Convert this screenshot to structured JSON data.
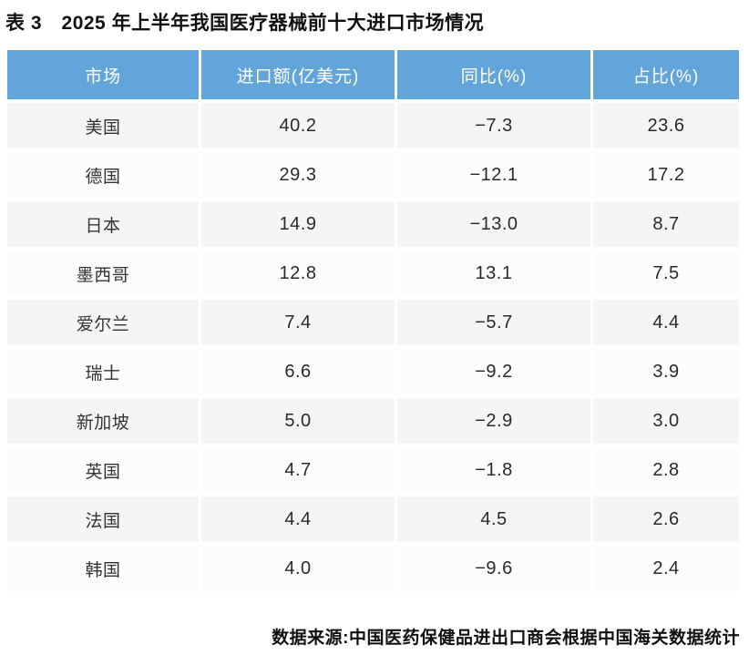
{
  "title": "表 3　2025 年上半年我国医疗器械前十大进口市场情况",
  "table": {
    "headers": [
      "市场",
      "进口额(亿美元)",
      "同比(%)",
      "占比(%)"
    ],
    "rows": [
      {
        "market": "美国",
        "import_value": "40.2",
        "yoy": "−7.3",
        "share": "23.6"
      },
      {
        "market": "德国",
        "import_value": "29.3",
        "yoy": "−12.1",
        "share": "17.2"
      },
      {
        "market": "日本",
        "import_value": "14.9",
        "yoy": "−13.0",
        "share": "8.7"
      },
      {
        "market": "墨西哥",
        "import_value": "12.8",
        "yoy": "13.1",
        "share": "7.5"
      },
      {
        "market": "爱尔兰",
        "import_value": "7.4",
        "yoy": "−5.7",
        "share": "4.4"
      },
      {
        "market": "瑞士",
        "import_value": "6.6",
        "yoy": "−9.2",
        "share": "3.9"
      },
      {
        "market": "新加坡",
        "import_value": "5.0",
        "yoy": "−2.9",
        "share": "3.0"
      },
      {
        "market": "英国",
        "import_value": "4.7",
        "yoy": "−1.8",
        "share": "2.8"
      },
      {
        "market": "法国",
        "import_value": "4.4",
        "yoy": "4.5",
        "share": "2.6"
      },
      {
        "market": "韩国",
        "import_value": "4.0",
        "yoy": "−9.6",
        "share": "2.4"
      }
    ]
  },
  "footer": {
    "source": "数据来源:中国医药保健品进出口商会根据中国海关数据统计"
  },
  "colors": {
    "header_bg": "#62a5da",
    "header_text": "#ffffff",
    "row_odd_bg": "#f4f5f6",
    "row_even_bg": "#fbfcfe",
    "body_text": "#2a2a2a"
  },
  "chart_data": {
    "type": "table",
    "title": "表 3　2025 年上半年我国医疗器械前十大进口市场情况",
    "columns": [
      "市场",
      "进口额(亿美元)",
      "同比(%)",
      "占比(%)"
    ],
    "rows": [
      [
        "美国",
        40.2,
        -7.3,
        23.6
      ],
      [
        "德国",
        29.3,
        -12.1,
        17.2
      ],
      [
        "日本",
        14.9,
        -13.0,
        8.7
      ],
      [
        "墨西哥",
        12.8,
        13.1,
        7.5
      ],
      [
        "爱尔兰",
        7.4,
        -5.7,
        4.4
      ],
      [
        "瑞士",
        6.6,
        -9.2,
        3.9
      ],
      [
        "新加坡",
        5.0,
        -2.9,
        3.0
      ],
      [
        "英国",
        4.7,
        -1.8,
        2.8
      ],
      [
        "法国",
        4.4,
        4.5,
        2.6
      ],
      [
        "韩国",
        4.0,
        -9.6,
        2.4
      ]
    ],
    "source": "数据来源:中国医药保健品进出口商会根据中国海关数据统计"
  }
}
